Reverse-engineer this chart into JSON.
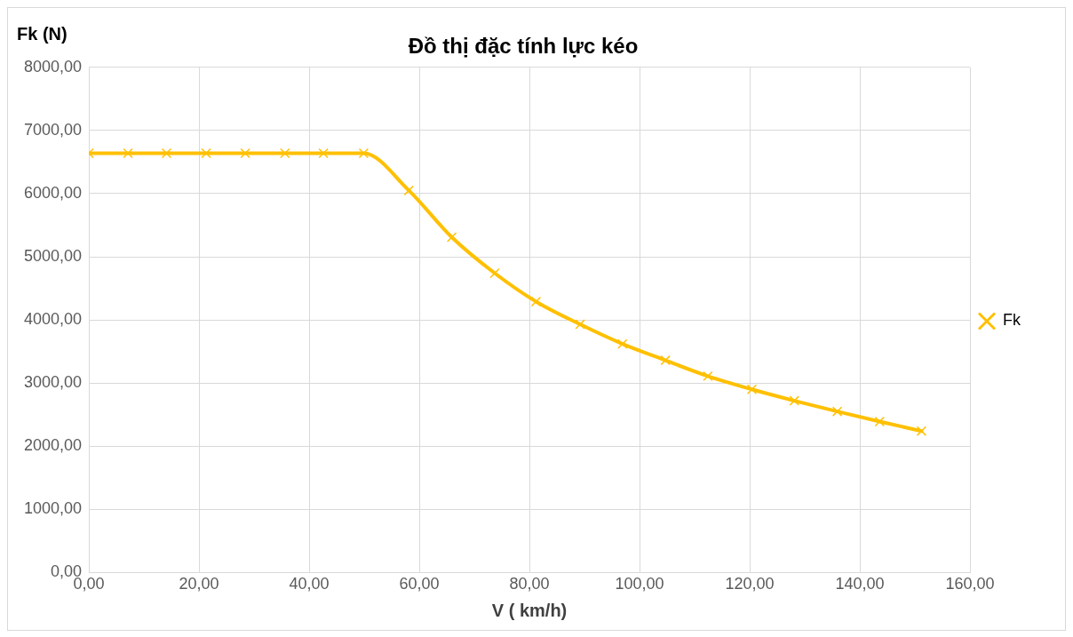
{
  "chart_data": {
    "type": "line",
    "title": "Đồ thị đặc tính lực kéo",
    "xlabel": "V ( km/h)",
    "ylabel": "Fk (N)",
    "x": [
      0,
      7.1,
      14.1,
      21.3,
      28.4,
      35.6,
      42.6,
      49.9,
      58.1,
      65.9,
      73.7,
      81.2,
      89.2,
      96.9,
      104.7,
      112.4,
      120.4,
      128.1,
      135.9,
      143.6,
      151.2
    ],
    "series": [
      {
        "name": "Fk",
        "color": "#ffc000",
        "values": [
          6640,
          6640,
          6640,
          6640,
          6640,
          6640,
          6640,
          6640,
          6050,
          5310,
          4740,
          4290,
          3930,
          3620,
          3360,
          3110,
          2900,
          2720,
          2550,
          2390,
          2240
        ]
      }
    ],
    "xlim": [
      0,
      160
    ],
    "xticks": [
      {
        "value": 0,
        "label": "0,00"
      },
      {
        "value": 20,
        "label": "20,00"
      },
      {
        "value": 40,
        "label": "40,00"
      },
      {
        "value": 60,
        "label": "60,00"
      },
      {
        "value": 80,
        "label": "80,00"
      },
      {
        "value": 100,
        "label": "100,00"
      },
      {
        "value": 120,
        "label": "120,00"
      },
      {
        "value": 140,
        "label": "140,00"
      },
      {
        "value": 160,
        "label": "160,00"
      }
    ],
    "ylim": [
      0,
      8000
    ],
    "yticks": [
      {
        "value": 0,
        "label": "0,00"
      },
      {
        "value": 1000,
        "label": "1000,00"
      },
      {
        "value": 2000,
        "label": "2000,00"
      },
      {
        "value": 3000,
        "label": "3000,00"
      },
      {
        "value": 4000,
        "label": "4000,00"
      },
      {
        "value": 5000,
        "label": "5000,00"
      },
      {
        "value": 6000,
        "label": "6000,00"
      },
      {
        "value": 7000,
        "label": "7000,00"
      },
      {
        "value": 8000,
        "label": "8000,00"
      }
    ],
    "grid": true,
    "legend": "right",
    "marker": "cross",
    "line_style": "solid"
  }
}
